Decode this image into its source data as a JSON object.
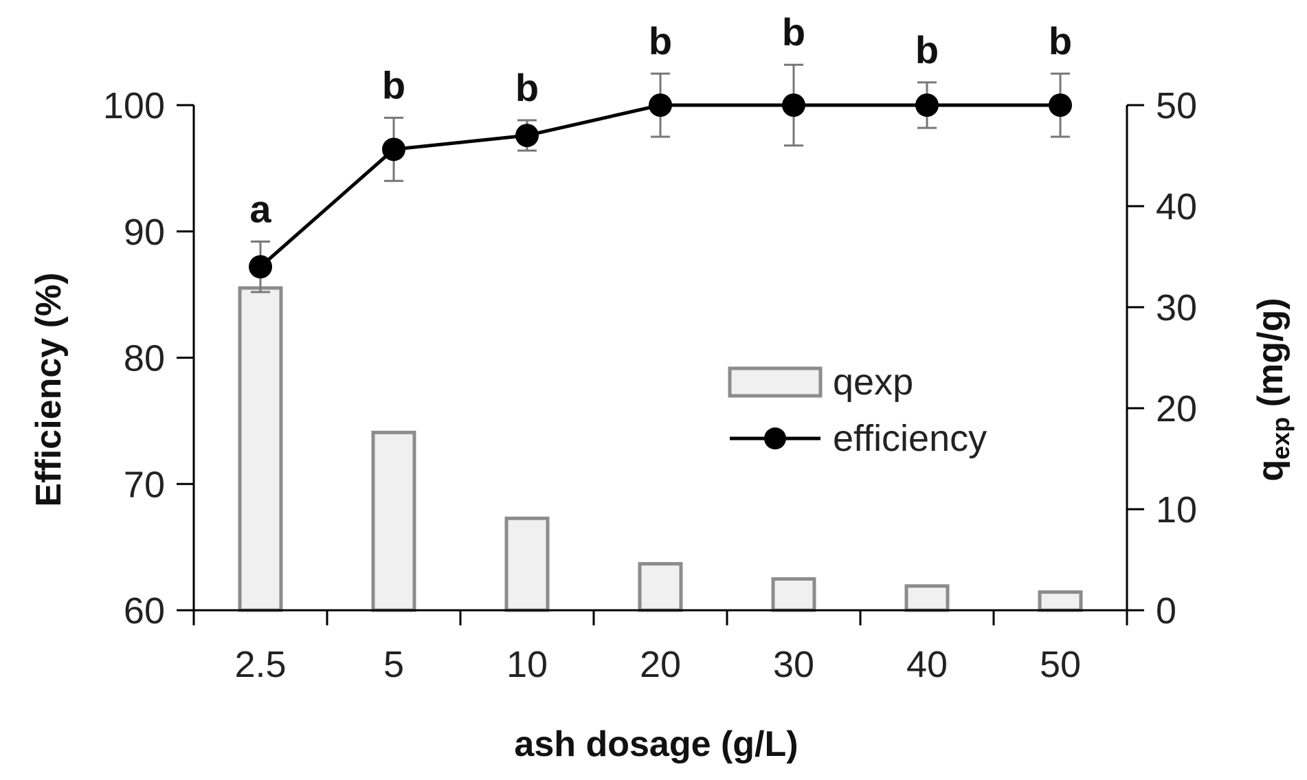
{
  "chart_data": {
    "type": "bar+line",
    "title": "",
    "xlabel": "ash dosage (g/L)",
    "ylabel_left": "Efficiency (%)",
    "ylabel_right_main": "q",
    "ylabel_right_sub": "exp",
    "ylabel_right_unit": " (mg/g)",
    "categories": [
      "2.5",
      "5",
      "10",
      "20",
      "30",
      "40",
      "50"
    ],
    "y_left": {
      "lim": [
        60,
        100
      ],
      "ticks": [
        60,
        70,
        80,
        90,
        100
      ]
    },
    "y_right": {
      "lim": [
        0,
        50
      ],
      "ticks": [
        0,
        10,
        20,
        30,
        40,
        50
      ]
    },
    "series": [
      {
        "name": "qexp",
        "kind": "bar",
        "axis": "right",
        "values": [
          31.9,
          17.6,
          9.1,
          4.6,
          3.1,
          2.4,
          1.8
        ],
        "fill": "#f0f0f0",
        "stroke": "#8c8c8c"
      },
      {
        "name": "efficiency",
        "kind": "line",
        "axis": "left",
        "values": [
          87.2,
          96.5,
          97.6,
          100.0,
          100.0,
          100.0,
          100.0
        ],
        "error": [
          2.0,
          2.5,
          1.2,
          2.5,
          3.2,
          1.8,
          2.5
        ],
        "color": "#000000"
      }
    ],
    "significance_labels": [
      "a",
      "b",
      "b",
      "b",
      "b",
      "b",
      "b"
    ],
    "legend": {
      "position": "center-right",
      "entries": [
        "qexp",
        "efficiency"
      ]
    }
  }
}
